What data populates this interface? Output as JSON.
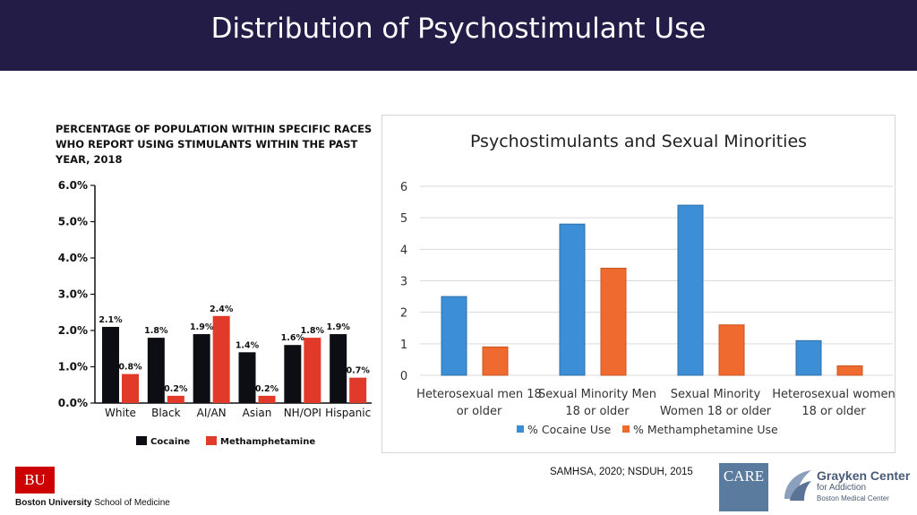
{
  "slide": {
    "title": "Distribution of Psychostimulant Use",
    "citation": "SAMHSA, 2020; NSDUH, 2015"
  },
  "logos": {
    "bu_mark": "BU",
    "bu_name_bold": "Boston University",
    "bu_name_rest": " School of Medicine",
    "care_mark": "CARE",
    "grayken_line1": "Grayken Center",
    "grayken_line2": "for Addiction",
    "grayken_line3": "Boston Medical Center"
  },
  "chart_data": [
    {
      "type": "bar",
      "title": "PERCENTAGE OF POPULATION WITHIN SPECIFIC RACES WHO REPORT USING STIMULANTS WITHIN THE PAST YEAR, 2018",
      "categories": [
        "White",
        "Black",
        "AI/AN",
        "Asian",
        "NH/OPI",
        "Hispanic"
      ],
      "series": [
        {
          "name": "Cocaine",
          "values": [
            2.1,
            1.8,
            1.9,
            1.4,
            1.6,
            1.9
          ],
          "labels": [
            "2.1%",
            "1.8%",
            "1.9%",
            "1.4%",
            "1.6%",
            "1.9%"
          ],
          "color": "#0d0d14"
        },
        {
          "name": "Methamphetamine",
          "values": [
            0.8,
            0.2,
            2.4,
            0.2,
            1.8,
            0.7
          ],
          "labels": [
            "0.8%",
            "0.2%",
            "2.4%",
            "0.2%",
            "1.8%",
            "0.7%"
          ],
          "color": "#e23a2a"
        }
      ],
      "yticks": [
        "0.0%",
        "1.0%",
        "2.0%",
        "3.0%",
        "4.0%",
        "5.0%",
        "6.0%"
      ],
      "ylim": [
        0,
        6
      ],
      "legend": "bottom",
      "grid": false
    },
    {
      "type": "bar",
      "title": "Psychostimulants and Sexual Minorities",
      "categories": [
        [
          "Heterosexual men 18",
          "or older"
        ],
        [
          "Sexual Minority Men",
          "18 or older"
        ],
        [
          "Sexual Minority",
          "Women 18 or older"
        ],
        [
          "Heterosexual women",
          "18 or older"
        ]
      ],
      "series": [
        {
          "name": "% Cocaine Use",
          "values": [
            2.5,
            4.8,
            5.4,
            1.1
          ],
          "color": "#3c8fd6"
        },
        {
          "name": "% Methamphetamine Use",
          "values": [
            0.9,
            3.4,
            1.6,
            0.3
          ],
          "color": "#ef6a2e"
        }
      ],
      "yticks": [
        "0",
        "1",
        "2",
        "3",
        "4",
        "5",
        "6"
      ],
      "ylim": [
        0,
        6
      ],
      "legend": "bottom",
      "grid": true
    }
  ]
}
